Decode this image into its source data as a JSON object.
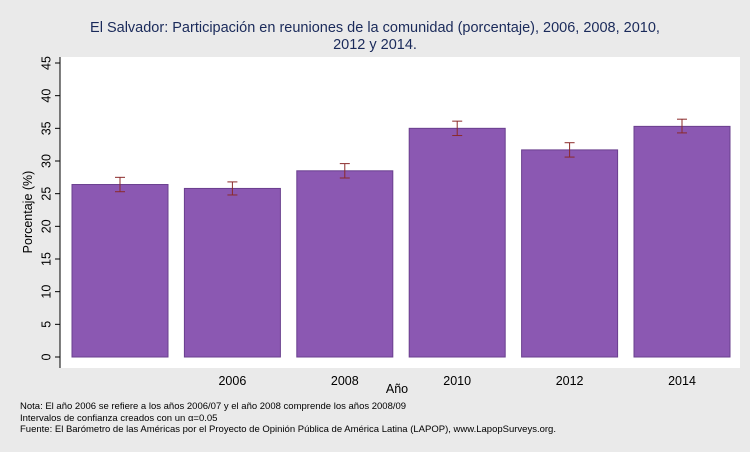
{
  "chart_data": {
    "type": "bar",
    "title_lines": [
      "El Salvador: Participación en reuniones de la comunidad (porcentaje), 2006, 2008, 2010,",
      "2012 y 2014."
    ],
    "categories": [
      "",
      "2006",
      "2008",
      "2010",
      "2012",
      "2014"
    ],
    "values": [
      26.4,
      25.8,
      28.5,
      35.0,
      31.7,
      35.3
    ],
    "ci_low": [
      25.3,
      24.8,
      27.4,
      33.9,
      30.6,
      34.3
    ],
    "ci_high": [
      27.5,
      26.8,
      29.6,
      36.1,
      32.8,
      36.4
    ],
    "xlabel": "Año",
    "ylabel": "Porcentaje (%)",
    "ylim": [
      0,
      45
    ],
    "yticks": [
      0,
      5,
      10,
      15,
      20,
      25,
      30,
      35,
      40,
      45
    ],
    "bar_color": "#8b58b2",
    "errorbar_color": "#8b2a2a",
    "grid": false
  },
  "notes": {
    "line1": "Nota: El año 2006 se refiere a los años 2006/07 y el año 2008 comprende los años 2008/09",
    "line2": "Intervalos de confianza creados con un α=0.05",
    "line3": "Fuente: El Barómetro de las Américas por el Proyecto de Opinión Pública de América Latina (LAPOP), www.LapopSurveys.org."
  }
}
